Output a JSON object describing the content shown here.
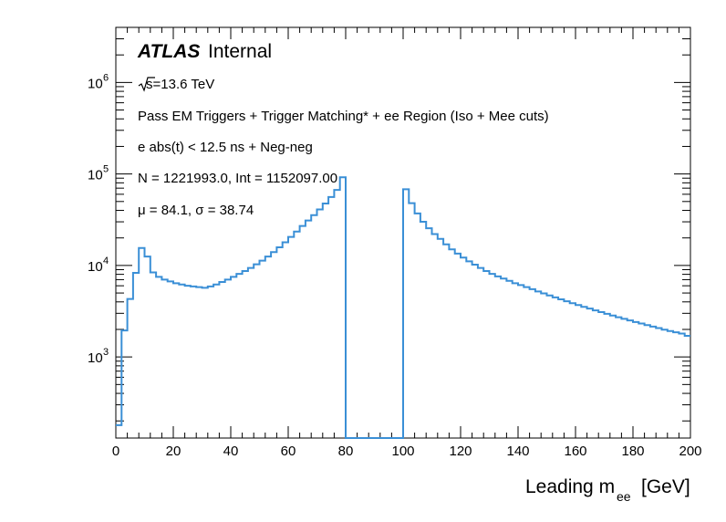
{
  "chart_data": {
    "type": "line",
    "title": "",
    "xlabel": "Leading m",
    "xlabel_sub": "ee",
    "xlabel_unit": "[GeV]",
    "ylabel": "",
    "xlim": [
      0,
      200
    ],
    "ylim": [
      130,
      4000000
    ],
    "yscale": "log",
    "grid": false,
    "legend": "none",
    "line_color": "#3a8fd6",
    "x_ticks": [
      0,
      20,
      40,
      60,
      80,
      100,
      120,
      140,
      160,
      180,
      200
    ],
    "y_ticks": [
      {
        "value": 1000,
        "base": "10",
        "exp": "3"
      },
      {
        "value": 10000,
        "base": "10",
        "exp": "4"
      },
      {
        "value": 100000,
        "base": "10",
        "exp": "5"
      },
      {
        "value": 1000000,
        "base": "10",
        "exp": "6"
      }
    ],
    "bin_width": 2,
    "bins": [
      [
        0,
        180
      ],
      [
        2,
        1950
      ],
      [
        4,
        4300
      ],
      [
        6,
        8300
      ],
      [
        8,
        15500
      ],
      [
        10,
        12500
      ],
      [
        12,
        8400
      ],
      [
        14,
        7500
      ],
      [
        16,
        7000
      ],
      [
        18,
        6700
      ],
      [
        20,
        6400
      ],
      [
        22,
        6200
      ],
      [
        24,
        6000
      ],
      [
        26,
        5900
      ],
      [
        28,
        5800
      ],
      [
        30,
        5700
      ],
      [
        32,
        5900
      ],
      [
        34,
        6200
      ],
      [
        36,
        6600
      ],
      [
        38,
        7000
      ],
      [
        40,
        7500
      ],
      [
        42,
        8100
      ],
      [
        44,
        8700
      ],
      [
        46,
        9400
      ],
      [
        48,
        10300
      ],
      [
        50,
        11300
      ],
      [
        52,
        12500
      ],
      [
        54,
        14000
      ],
      [
        56,
        15800
      ],
      [
        58,
        17900
      ],
      [
        60,
        20500
      ],
      [
        62,
        23500
      ],
      [
        64,
        27000
      ],
      [
        66,
        31000
      ],
      [
        68,
        35500
      ],
      [
        70,
        41000
      ],
      [
        72,
        47500
      ],
      [
        74,
        56000
      ],
      [
        76,
        67000
      ],
      [
        78,
        92000
      ],
      [
        80,
        130
      ],
      [
        82,
        130
      ],
      [
        84,
        130
      ],
      [
        86,
        130
      ],
      [
        88,
        130
      ],
      [
        90,
        130
      ],
      [
        92,
        130
      ],
      [
        94,
        130
      ],
      [
        96,
        130
      ],
      [
        98,
        130
      ],
      [
        100,
        68000
      ],
      [
        102,
        48000
      ],
      [
        104,
        37000
      ],
      [
        106,
        30000
      ],
      [
        108,
        25500
      ],
      [
        110,
        22000
      ],
      [
        112,
        19500
      ],
      [
        114,
        17000
      ],
      [
        116,
        15000
      ],
      [
        118,
        13500
      ],
      [
        120,
        12200
      ],
      [
        122,
        11100
      ],
      [
        124,
        10200
      ],
      [
        126,
        9400
      ],
      [
        128,
        8700
      ],
      [
        130,
        8100
      ],
      [
        132,
        7600
      ],
      [
        134,
        7200
      ],
      [
        136,
        6800
      ],
      [
        138,
        6400
      ],
      [
        140,
        6100
      ],
      [
        142,
        5800
      ],
      [
        144,
        5500
      ],
      [
        146,
        5200
      ],
      [
        148,
        4950
      ],
      [
        150,
        4700
      ],
      [
        152,
        4480
      ],
      [
        154,
        4260
      ],
      [
        156,
        4060
      ],
      [
        158,
        3870
      ],
      [
        160,
        3700
      ],
      [
        162,
        3530
      ],
      [
        164,
        3380
      ],
      [
        166,
        3230
      ],
      [
        168,
        3090
      ],
      [
        170,
        2960
      ],
      [
        172,
        2840
      ],
      [
        174,
        2720
      ],
      [
        176,
        2610
      ],
      [
        178,
        2510
      ],
      [
        180,
        2410
      ],
      [
        182,
        2320
      ],
      [
        184,
        2230
      ],
      [
        186,
        2150
      ],
      [
        188,
        2070
      ],
      [
        190,
        1990
      ],
      [
        192,
        1920
      ],
      [
        194,
        1860
      ],
      [
        196,
        1800
      ],
      [
        198,
        1700
      ]
    ],
    "annotations": {
      "experiment": "ATLAS",
      "status": "Internal",
      "energy": "s=13.6 TeV",
      "selection": "Pass EM Triggers + Trigger Matching* + ee Region (Iso + Mee cuts)",
      "timing": "e abs(t) < 12.5 ns + Neg-neg",
      "counts": "N = 1221993.0, Int  = 1152097.00",
      "stats": "μ = 84.1, σ = 38.74"
    }
  }
}
